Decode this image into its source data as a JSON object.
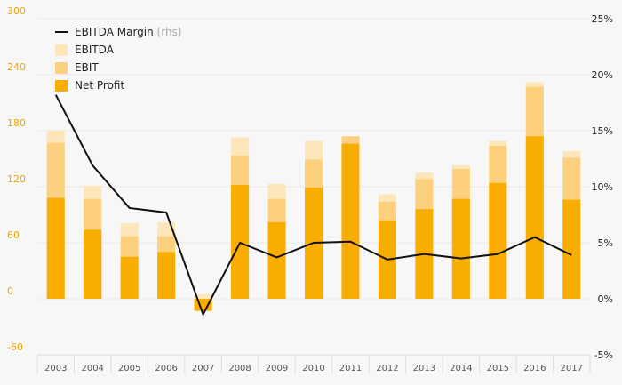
{
  "chart_data": {
    "type": "bar",
    "categories": [
      "2003",
      "2004",
      "2005",
      "2006",
      "2007",
      "2008",
      "2009",
      "2010",
      "2011",
      "2012",
      "2013",
      "2014",
      "2015",
      "2016",
      "2017"
    ],
    "series": [
      {
        "name": "EBITDA",
        "kind": "bar-overlay",
        "values": [
          180,
          121,
          81,
          82,
          5,
          173,
          123,
          169,
          174,
          112,
          135,
          143,
          169,
          232,
          158
        ]
      },
      {
        "name": "EBIT",
        "kind": "bar-overlay",
        "values": [
          167,
          107,
          67,
          67,
          -12,
          153,
          107,
          149,
          174,
          104,
          128,
          139,
          164,
          227,
          151
        ]
      },
      {
        "name": "Net Profit",
        "kind": "bar-overlay",
        "values": [
          108,
          74,
          45,
          50,
          -13,
          122,
          82,
          119,
          166,
          84,
          96,
          107,
          124,
          174,
          106
        ]
      },
      {
        "name": "EBITDA Margin",
        "suffix": "(rhs)",
        "kind": "line",
        "axis": "right",
        "values": [
          18.2,
          11.9,
          8.1,
          7.7,
          -1.4,
          5.0,
          3.7,
          5.0,
          5.1,
          3.5,
          4.0,
          3.6,
          4.0,
          5.5,
          3.9
        ]
      }
    ],
    "y_left": {
      "ticks": [
        300,
        240,
        180,
        120,
        60,
        0,
        -60
      ],
      "ylim": [
        -60,
        300
      ]
    },
    "y_right": {
      "ticks": [
        "25%",
        "20%",
        "15%",
        "10%",
        "5%",
        "0%",
        "-5%"
      ],
      "ylim": [
        -5,
        25
      ]
    },
    "legend": {
      "placement": "top-left"
    },
    "grid": true,
    "colors": {
      "EBITDA": "#fde7ba",
      "EBIT": "#fcd07c",
      "Net Profit": "#f9ad00",
      "EBITDA Margin": "#111111",
      "left_axis_text": "#f0a500",
      "grid": "#e8e8e8",
      "background": "#f7f7f7"
    }
  }
}
